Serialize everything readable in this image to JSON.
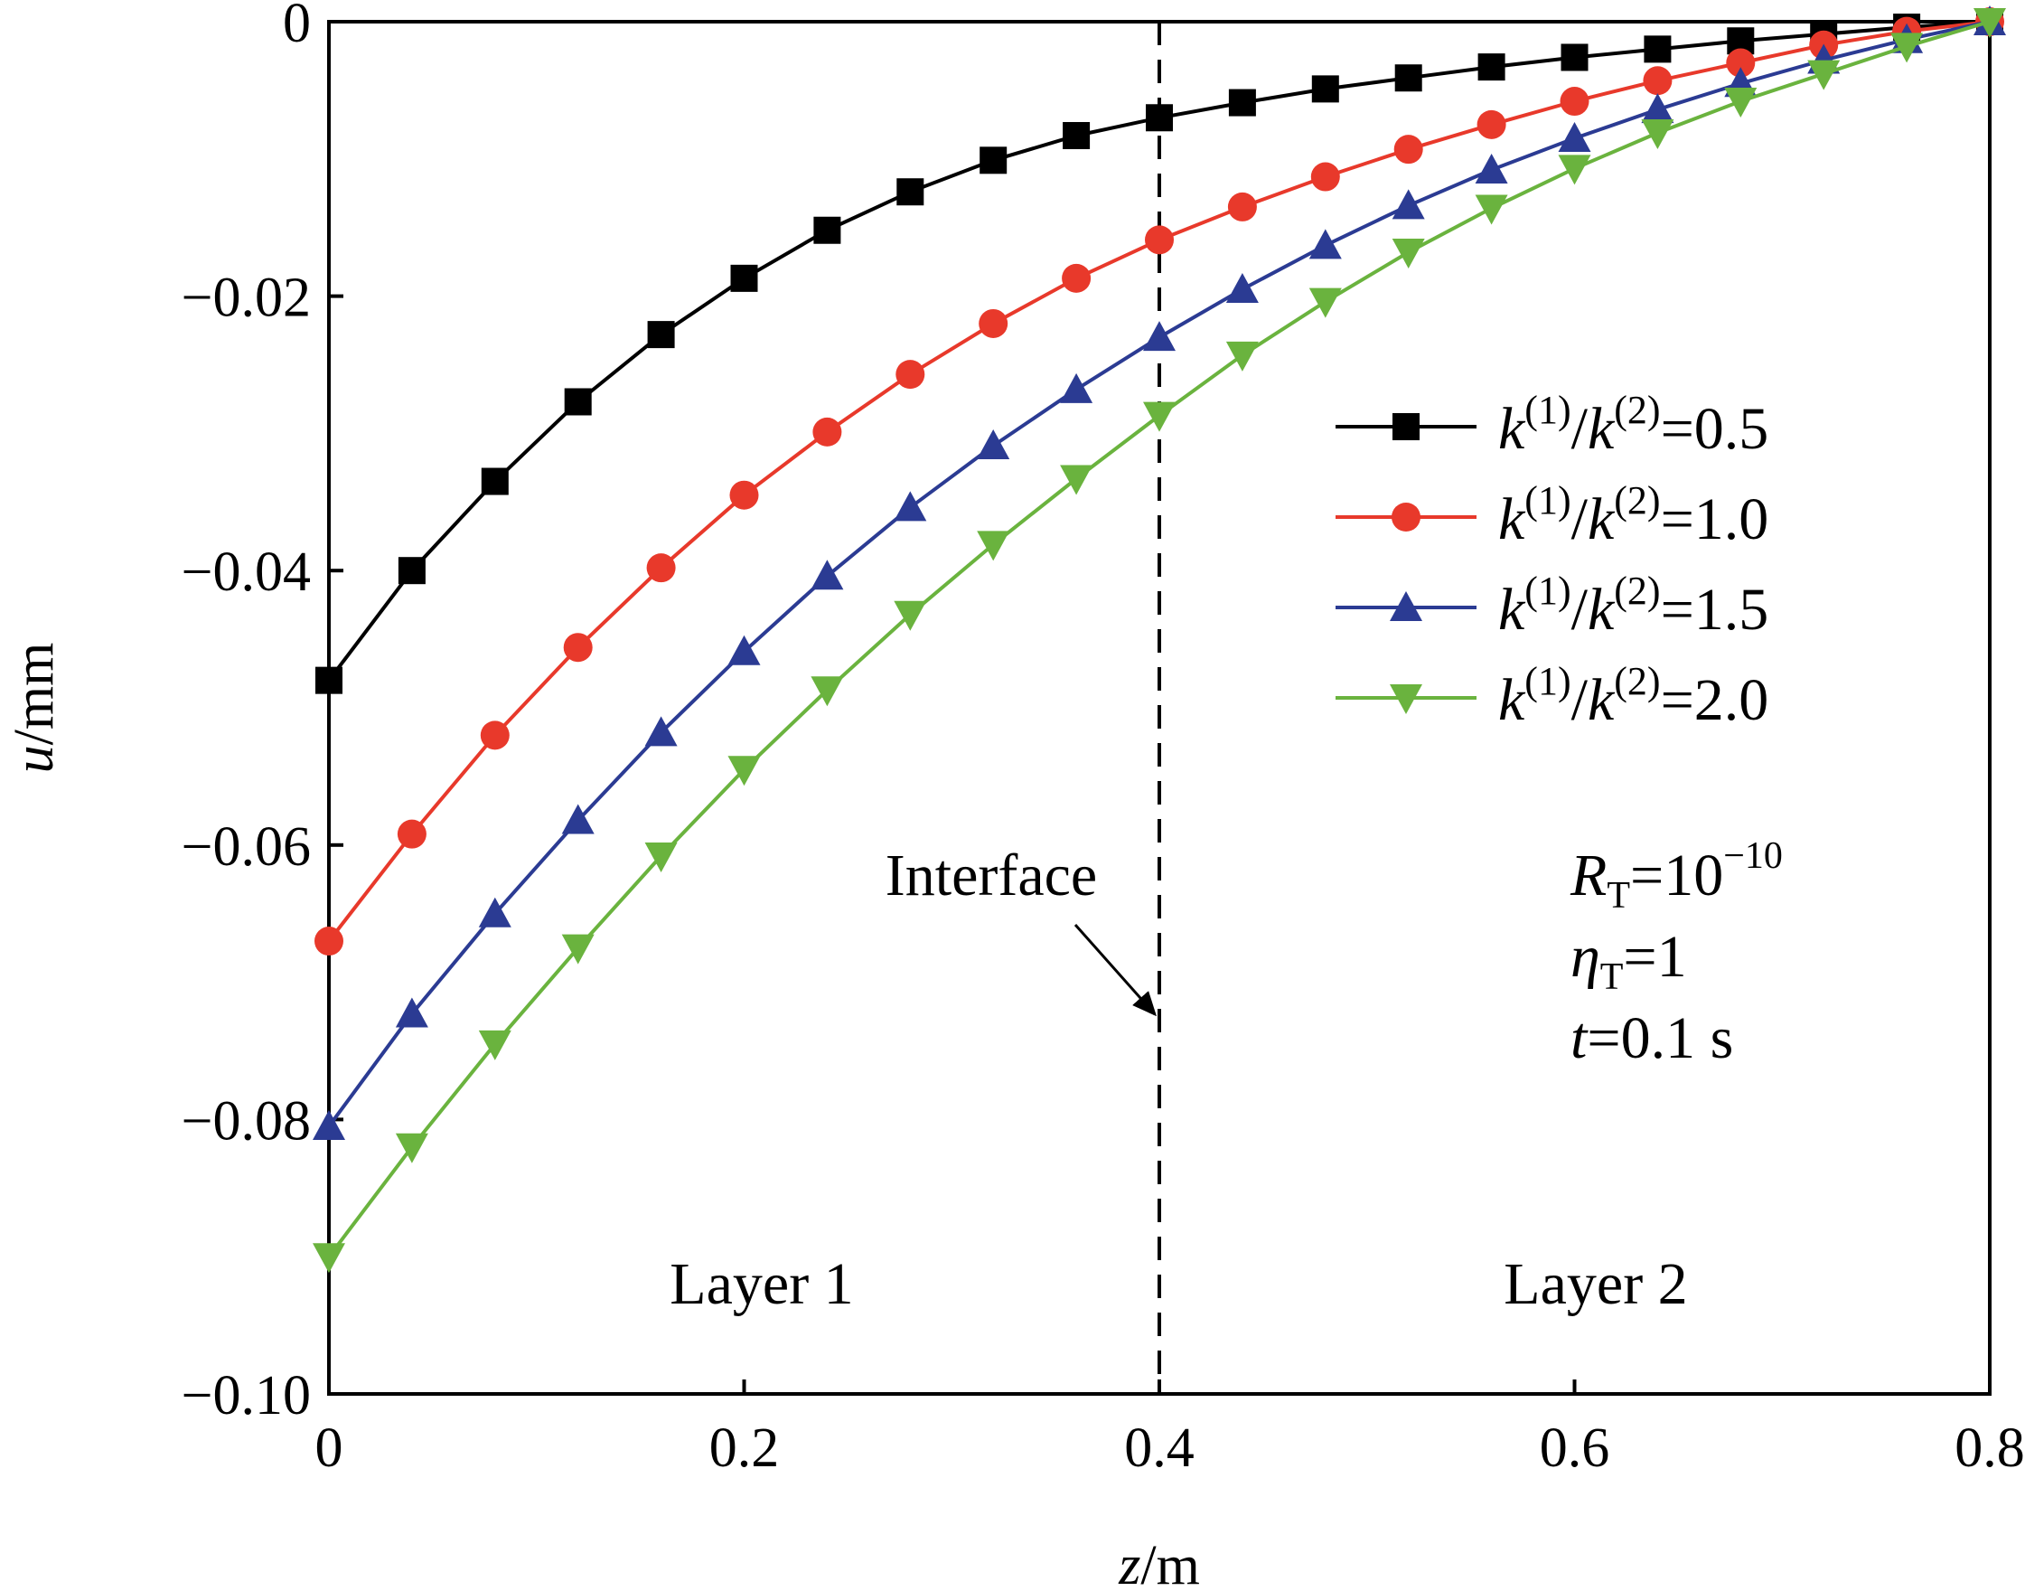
{
  "chart_data": {
    "type": "line",
    "xlabel": {
      "italic": "z",
      "rest": "/m"
    },
    "ylabel": {
      "italic": "u",
      "rest": "/mm"
    },
    "xlim": [
      0,
      0.8
    ],
    "ylim": [
      -0.1,
      0
    ],
    "xticks": [
      0,
      0.2,
      0.4,
      0.6,
      0.8
    ],
    "xtick_labels": [
      "0",
      "0.2",
      "0.4",
      "0.6",
      "0.8"
    ],
    "yticks": [
      0,
      -0.02,
      -0.04,
      -0.06,
      -0.08,
      -0.1
    ],
    "ytick_labels": [
      "0",
      "−0.02",
      "−0.04",
      "−0.06",
      "−0.08",
      "−0.10"
    ],
    "grid": false,
    "legend_position": "right",
    "x": [
      0,
      0.04,
      0.08,
      0.12,
      0.16,
      0.2,
      0.24,
      0.28,
      0.32,
      0.36,
      0.4,
      0.44,
      0.48,
      0.52,
      0.56,
      0.6,
      0.64,
      0.68,
      0.72,
      0.76,
      0.8
    ],
    "series": [
      {
        "name": "k(1)/k(2)=0.5",
        "ratio": "0.5",
        "color": "#000000",
        "marker": "square",
        "values": [
          -0.048,
          -0.04,
          -0.0335,
          -0.0277,
          -0.0228,
          -0.0187,
          -0.0152,
          -0.0124,
          -0.0101,
          -0.0083,
          -0.007,
          -0.0059,
          -0.0049,
          -0.0041,
          -0.0033,
          -0.0026,
          -0.002,
          -0.0014,
          -0.0009,
          -0.0004,
          0.0
        ]
      },
      {
        "name": "k(1)/k(2)=1.0",
        "ratio": "1.0",
        "color": "#e8392b",
        "marker": "circle",
        "values": [
          -0.067,
          -0.0592,
          -0.052,
          -0.0456,
          -0.0398,
          -0.0345,
          -0.0299,
          -0.0257,
          -0.022,
          -0.0187,
          -0.0159,
          -0.0135,
          -0.0113,
          -0.0093,
          -0.0075,
          -0.0058,
          -0.0043,
          -0.003,
          -0.0017,
          -0.0007,
          0.0
        ]
      },
      {
        "name": "k(1)/k(2)=1.5",
        "ratio": "1.5",
        "color": "#2b3b93",
        "marker": "triangle-up",
        "values": [
          -0.0805,
          -0.0723,
          -0.065,
          -0.0582,
          -0.0518,
          -0.0459,
          -0.0404,
          -0.0354,
          -0.0309,
          -0.0268,
          -0.023,
          -0.0195,
          -0.0163,
          -0.0134,
          -0.0108,
          -0.0085,
          -0.0064,
          -0.0045,
          -0.0028,
          -0.0013,
          0.0
        ]
      },
      {
        "name": "k(1)/k(2)=2.0",
        "ratio": "2.0",
        "color": "#6ab33e",
        "marker": "triangle-down",
        "values": [
          -0.09,
          -0.082,
          -0.0745,
          -0.0675,
          -0.0608,
          -0.0545,
          -0.0487,
          -0.0432,
          -0.0381,
          -0.0333,
          -0.0287,
          -0.0243,
          -0.0204,
          -0.0168,
          -0.0136,
          -0.0107,
          -0.0081,
          -0.0058,
          -0.0038,
          -0.0018,
          0.0
        ]
      }
    ],
    "interface_line_x": 0.4,
    "annotations": {
      "interface_label": "Interface",
      "layer1_label": "Layer 1",
      "layer2_label": "Layer 2",
      "params": {
        "R_sym": "R",
        "R_sub": "T",
        "R_val": "=10",
        "R_exp": "−10",
        "eta_sym": "η",
        "eta_sub": "T",
        "eta_val": "=1",
        "t_sym": "t",
        "t_val": "=0.1 s"
      }
    }
  }
}
